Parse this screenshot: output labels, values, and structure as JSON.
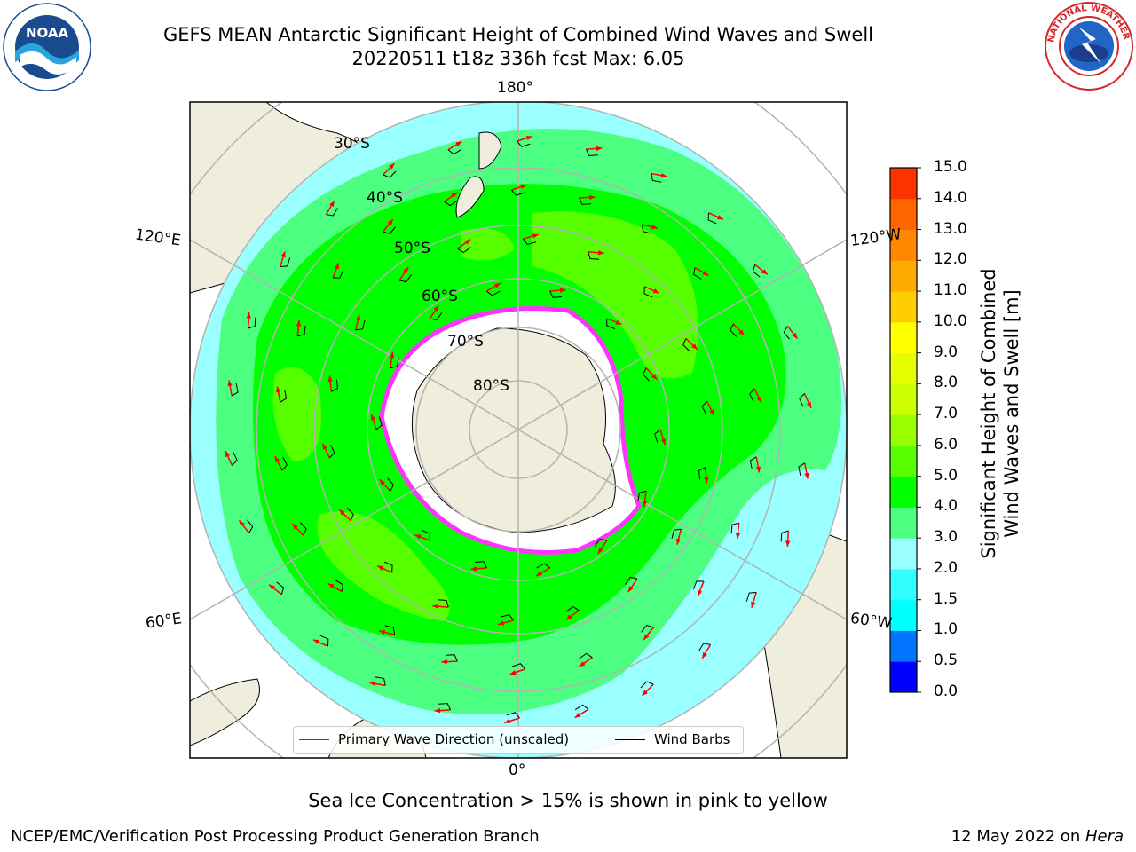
{
  "header": {
    "title_line1": "GEFS MEAN Antarctic Significant Height of Combined Wind Waves and Swell",
    "title_line2": "20220511 t18z 336h fcst   Max: 6.05"
  },
  "logos": {
    "left": "NOAA",
    "right": "NATIONAL WEATHER SERVICE"
  },
  "map": {
    "lon_labels": [
      "180°",
      "120°E",
      "120°W",
      "60°E",
      "60°W",
      "0°"
    ],
    "lat_labels": [
      "30°S",
      "40°S",
      "50°S",
      "60°S",
      "70°S",
      "80°S"
    ],
    "colors": {
      "land": "#efeddc",
      "ice": "#ffffff",
      "seaice_edge": "#ff33ff"
    }
  },
  "legend": {
    "wave_label": "Primary Wave Direction (unscaled)",
    "barb_label": "Wind Barbs",
    "wave_color": "#ff0000",
    "barb_color": "#000000"
  },
  "colorbar": {
    "title_line1": "Significant Height of Combined",
    "title_line2": "Wind Waves and Swell [m]",
    "ticks": [
      "0.0",
      "0.5",
      "1.0",
      "1.5",
      "2.0",
      "3.0",
      "4.0",
      "5.0",
      "6.0",
      "7.0",
      "8.0",
      "9.0",
      "10.0",
      "11.0",
      "12.0",
      "13.0",
      "14.0",
      "15.0"
    ],
    "colors": [
      "#0000ff",
      "#0073ff",
      "#00ffff",
      "#33ffff",
      "#99ffff",
      "#4dff80",
      "#00ff00",
      "#55ff00",
      "#99ff00",
      "#ccff00",
      "#e6ff00",
      "#ffff00",
      "#ffcc00",
      "#ffaa00",
      "#ff8800",
      "#ff6600",
      "#ff3300"
    ]
  },
  "note": "Sea Ice Concentration > 15% is shown in pink to yellow",
  "footer": {
    "left": "NCEP/EMC/Verification Post Processing Product Generation Branch",
    "date": "12 May 2022 on ",
    "machine": "Hera"
  }
}
